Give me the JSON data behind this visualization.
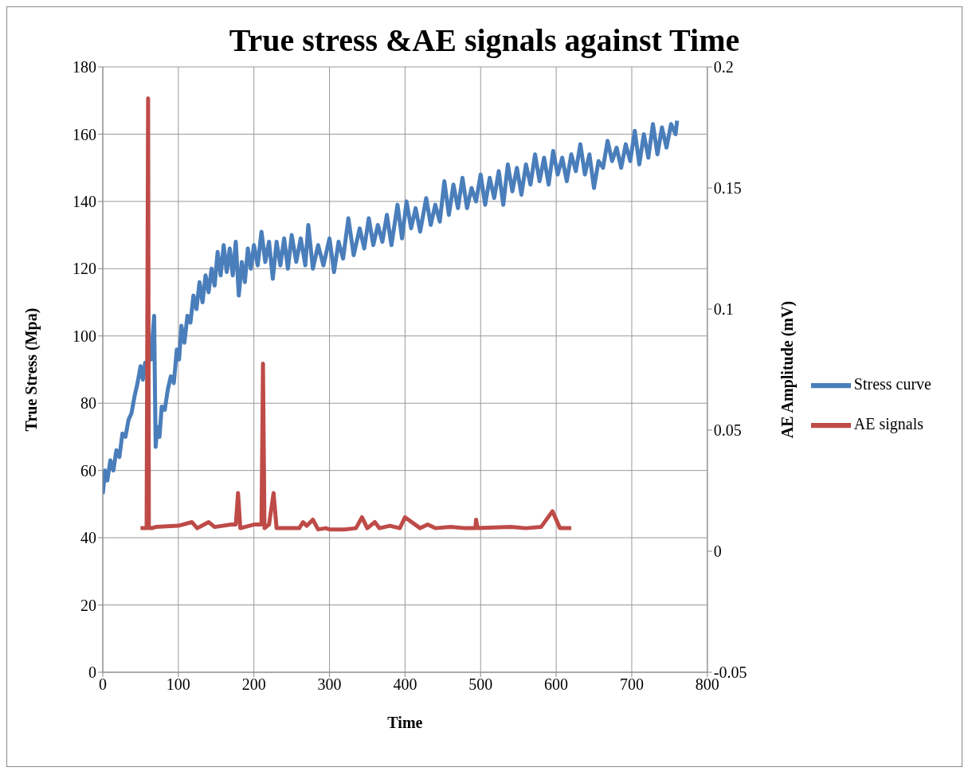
{
  "chart_data": {
    "type": "line",
    "title": "True stress &AE signals against Time",
    "xlabel": "Time",
    "ylabel": "True Stress (Mpa)",
    "y2label": "AE  Amplitude (mV)",
    "xlim": [
      0,
      800
    ],
    "xticks": [
      0,
      100,
      200,
      300,
      400,
      500,
      600,
      700,
      800
    ],
    "ylim": [
      0,
      180
    ],
    "yticks": [
      0,
      20,
      40,
      60,
      80,
      100,
      120,
      140,
      160,
      180
    ],
    "y2lim": [
      -0.05,
      0.2
    ],
    "y2ticks": [
      -0.05,
      0,
      0.05,
      0.1,
      0.15,
      0.2
    ],
    "grid": true,
    "legend": "right",
    "marker": "none",
    "line_style": "solid",
    "series": [
      {
        "name": "Stress curve",
        "color": "#4a7ebb",
        "x": [
          0,
          3,
          6,
          10,
          14,
          18,
          22,
          26,
          30,
          34,
          38,
          42,
          46,
          50,
          53,
          56,
          59,
          62,
          64,
          66,
          68,
          69,
          70,
          72,
          75,
          78,
          82,
          86,
          90,
          94,
          98,
          101,
          104,
          108,
          112,
          116,
          120,
          124,
          128,
          132,
          136,
          140,
          144,
          148,
          152,
          156,
          160,
          164,
          168,
          172,
          176,
          180,
          184,
          188,
          192,
          196,
          200,
          205,
          210,
          215,
          220,
          225,
          230,
          235,
          240,
          245,
          250,
          256,
          262,
          268,
          272,
          278,
          285,
          292,
          300,
          306,
          312,
          318,
          325,
          332,
          340,
          346,
          352,
          358,
          364,
          370,
          376,
          382,
          390,
          396,
          402,
          408,
          414,
          420,
          428,
          434,
          440,
          446,
          452,
          458,
          464,
          470,
          476,
          482,
          488,
          494,
          500,
          506,
          512,
          518,
          524,
          530,
          536,
          542,
          548,
          554,
          560,
          566,
          572,
          578,
          584,
          590,
          596,
          602,
          608,
          614,
          620,
          626,
          632,
          638,
          644,
          650,
          656,
          662,
          668,
          674,
          680,
          686,
          692,
          698,
          704,
          710,
          716,
          722,
          728,
          734,
          740,
          746,
          752,
          758,
          760
        ],
        "values": [
          53,
          60,
          57,
          63,
          60,
          66,
          64,
          71,
          70,
          75,
          77,
          82,
          86,
          91,
          87,
          92,
          89,
          97,
          93,
          100,
          106,
          85,
          67,
          73,
          70,
          79,
          78,
          84,
          88,
          86,
          96,
          93,
          103,
          98,
          106,
          104,
          112,
          108,
          116,
          110,
          118,
          113,
          120,
          115,
          125,
          118,
          127,
          119,
          126,
          118,
          128,
          112,
          122,
          116,
          126,
          120,
          127,
          121,
          131,
          122,
          128,
          117,
          128,
          121,
          129,
          120,
          130,
          122,
          129,
          121,
          133,
          120,
          127,
          121,
          129,
          119,
          128,
          123,
          135,
          124,
          132,
          126,
          135,
          127,
          133,
          128,
          136,
          127,
          139,
          129,
          140,
          132,
          138,
          131,
          141,
          133,
          139,
          134,
          146,
          136,
          145,
          138,
          147,
          138,
          144,
          140,
          148,
          139,
          147,
          141,
          149,
          139,
          151,
          143,
          150,
          142,
          151,
          145,
          154,
          146,
          153,
          145,
          155,
          148,
          153,
          146,
          154,
          149,
          157,
          148,
          154,
          144,
          152,
          150,
          158,
          152,
          156,
          150,
          157,
          152,
          161,
          151,
          160,
          153,
          163,
          154,
          162,
          156,
          163,
          160,
          164
        ]
      },
      {
        "name": "AE signals",
        "color": "#be4b48",
        "axis": "y2",
        "x": [
          50,
          58,
          60,
          61,
          65,
          70,
          100,
          118,
          125,
          140,
          148,
          170,
          176,
          179,
          182,
          200,
          210,
          212,
          214,
          220,
          226,
          230,
          260,
          265,
          270,
          278,
          285,
          295,
          300,
          320,
          335,
          343,
          350,
          360,
          366,
          380,
          393,
          400,
          420,
          430,
          440,
          460,
          480,
          493,
          494,
          496,
          540,
          560,
          580,
          595,
          605,
          620
        ],
        "values": [
          0.0095,
          0.0095,
          0.187,
          0.0095,
          0.0095,
          0.01,
          0.0105,
          0.012,
          0.0095,
          0.012,
          0.01,
          0.011,
          0.011,
          0.024,
          0.0095,
          0.011,
          0.011,
          0.0775,
          0.0095,
          0.011,
          0.024,
          0.0095,
          0.0095,
          0.012,
          0.0105,
          0.013,
          0.009,
          0.0095,
          0.009,
          0.009,
          0.0095,
          0.014,
          0.0095,
          0.012,
          0.0095,
          0.0105,
          0.0095,
          0.014,
          0.0095,
          0.011,
          0.0095,
          0.01,
          0.0095,
          0.0095,
          0.013,
          0.0095,
          0.01,
          0.0095,
          0.01,
          0.0165,
          0.0095,
          0.0095
        ]
      }
    ]
  }
}
